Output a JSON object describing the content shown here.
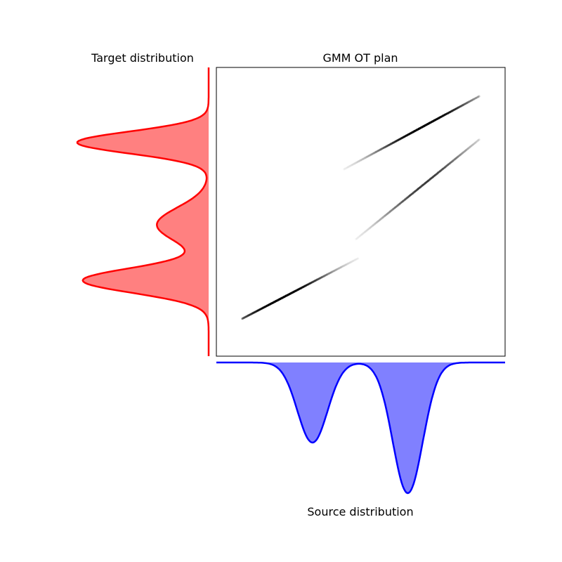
{
  "chart_data": [
    {
      "type": "area",
      "title": "Target distribution",
      "orientation": "vertical",
      "colors": {
        "line": "#ff0000",
        "fill": "#ff8080"
      },
      "grid": false,
      "note_x_domain": [
        0,
        1
      ],
      "components": [
        {
          "mean": 0.262,
          "sd": 0.043,
          "weight": 0.4
        },
        {
          "mean": 0.455,
          "sd": 0.06,
          "weight": 0.23
        },
        {
          "mean": 0.74,
          "sd": 0.038,
          "weight": 0.37
        }
      ]
    },
    {
      "type": "heatmap",
      "title": "GMM OT plan",
      "colormap": "gray_r",
      "grid": false,
      "segments": [
        {
          "x0": 0.09,
          "x1": 0.57,
          "y0": 0.13,
          "y1": 0.38,
          "peak": 0.28,
          "strength": 1.0
        },
        {
          "x0": 0.44,
          "x1": 0.91,
          "y0": 0.37,
          "y1": 0.75,
          "peak": 0.6,
          "strength": 0.6
        },
        {
          "x0": 0.41,
          "x1": 0.91,
          "y0": 0.63,
          "y1": 0.9,
          "peak": 0.62,
          "strength": 1.0
        }
      ]
    },
    {
      "type": "area",
      "title": "Source distribution",
      "orientation": "horizontal",
      "colors": {
        "line": "#0000ff",
        "fill": "#8080ff"
      },
      "grid": false,
      "components": [
        {
          "mean": 0.333,
          "sd": 0.052,
          "weight": 0.38
        },
        {
          "mean": 0.663,
          "sd": 0.052,
          "weight": 0.62
        }
      ]
    }
  ]
}
